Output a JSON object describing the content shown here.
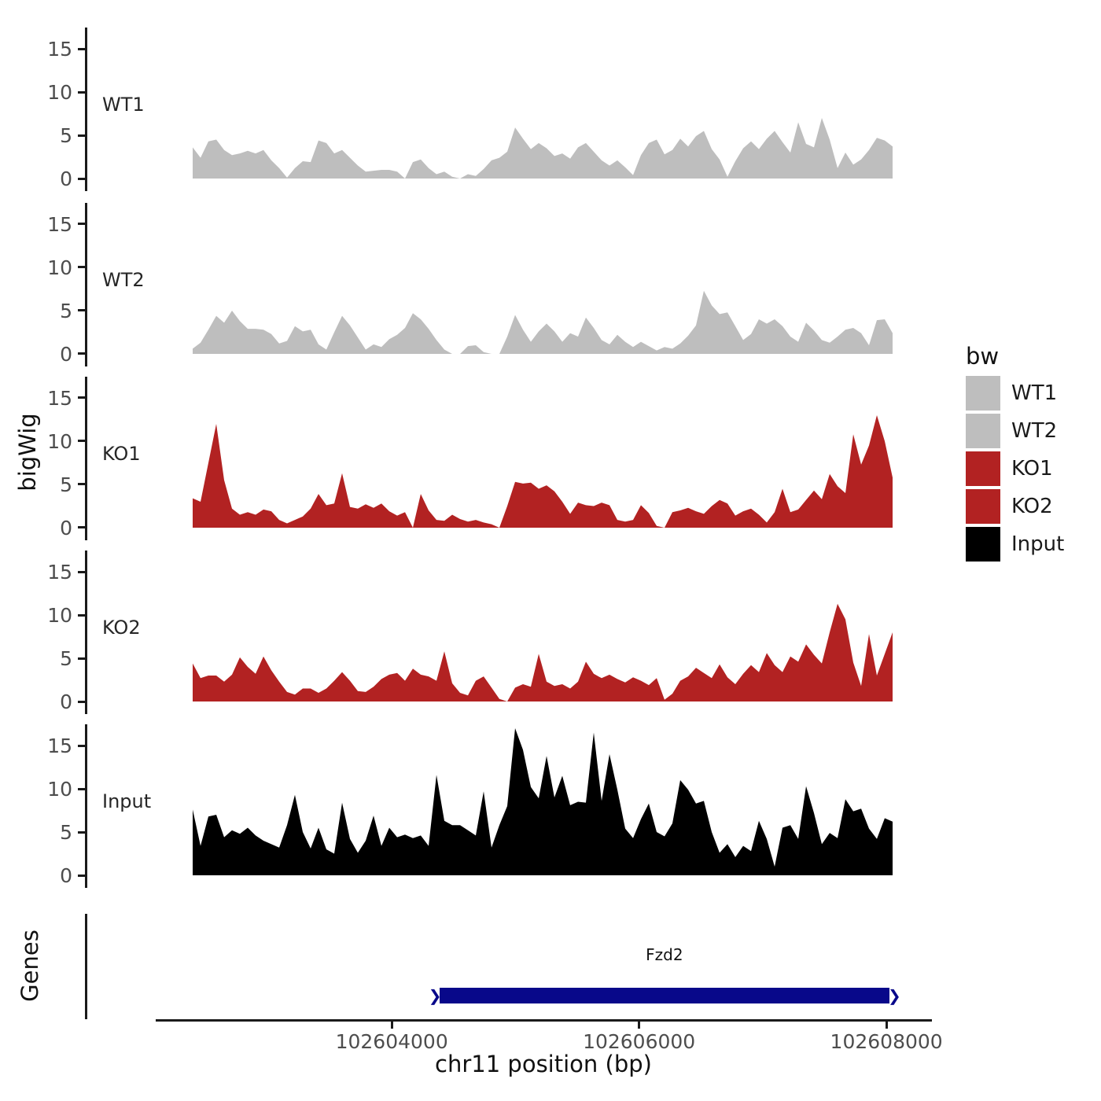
{
  "figure": {
    "y_axis_title": "bigWig",
    "genes_axis_title": "Genes",
    "x_axis_title": "chr11 position (bp)"
  },
  "legend": {
    "title": "bw",
    "items": [
      {
        "label": "WT1",
        "color": "#BEBEBE"
      },
      {
        "label": "WT2",
        "color": "#BEBEBE"
      },
      {
        "label": "KO1",
        "color": "#B22222"
      },
      {
        "label": "KO2",
        "color": "#B22222"
      },
      {
        "label": "Input",
        "color": "#000000"
      }
    ]
  },
  "chart_data": {
    "type": "area",
    "xlabel": "chr11 position (bp)",
    "ylabel": "bigWig",
    "xlim": [
      102602390,
      102608050
    ],
    "x_ticks_bp": [
      102604000,
      102606000,
      102608000
    ],
    "ylim": [
      0,
      18
    ],
    "y_ticks": [
      0,
      5,
      10,
      15
    ],
    "legend_title": "bw",
    "grid": false,
    "tracks": [
      {
        "name": "WT1",
        "color": "#BEBEBE",
        "values": [
          3.6,
          2.4,
          4.3,
          4.5,
          3.3,
          2.7,
          2.9,
          3.2,
          2.9,
          3.3,
          2.1,
          1.2,
          0.1,
          1.2,
          2.0,
          1.9,
          4.4,
          4.1,
          2.9,
          3.3,
          2.4,
          1.5,
          0.8,
          0.9,
          1.0,
          1.0,
          0.8,
          0,
          1.9,
          2.2,
          1.2,
          0.5,
          0.8,
          0.2,
          0,
          0.5,
          0.3,
          1.1,
          2.1,
          2.4,
          3.1,
          5.9,
          4.6,
          3.4,
          4.1,
          3.5,
          2.6,
          2.9,
          2.3,
          3.6,
          4.1,
          3.1,
          2.1,
          1.5,
          2.1,
          1.3,
          0.4,
          2.7,
          4.1,
          4.5,
          2.8,
          3.3,
          4.6,
          3.7,
          4.9,
          5.5,
          3.4,
          2.2,
          0.2,
          2.0,
          3.5,
          4.3,
          3.4,
          4.6,
          5.5,
          4.2,
          3.0,
          6.5,
          4.0,
          3.6,
          7.0,
          4.5,
          1.2,
          3.0,
          1.6,
          2.2,
          3.3,
          4.7,
          4.4,
          3.7
        ]
      },
      {
        "name": "WT2",
        "color": "#BEBEBE",
        "values": [
          0.6,
          1.3,
          2.8,
          4.4,
          3.6,
          5.0,
          3.8,
          2.9,
          2.9,
          2.8,
          2.3,
          1.2,
          1.5,
          3.2,
          2.6,
          2.8,
          1.1,
          0.5,
          2.5,
          4.4,
          3.3,
          1.9,
          0.5,
          1.1,
          0.8,
          1.7,
          2.2,
          3.0,
          4.7,
          4.0,
          2.9,
          1.6,
          0.5,
          0,
          0,
          0.9,
          1.0,
          0.2,
          0,
          0,
          2.0,
          4.5,
          2.8,
          1.4,
          2.6,
          3.5,
          2.6,
          1.4,
          2.4,
          2.0,
          4.2,
          3.0,
          1.6,
          1.1,
          2.2,
          1.4,
          0.8,
          1.4,
          0.9,
          0.4,
          0.8,
          0.6,
          1.2,
          2.1,
          3.3,
          7.3,
          5.6,
          4.6,
          4.8,
          3.2,
          1.6,
          2.3,
          4.0,
          3.5,
          4.0,
          3.2,
          2.0,
          1.4,
          3.6,
          2.7,
          1.6,
          1.3,
          2.0,
          2.8,
          3.0,
          2.4,
          1.0,
          3.9,
          4.0,
          2.4
        ]
      },
      {
        "name": "KO1",
        "color": "#B22222",
        "values": [
          3.4,
          3.0,
          7.5,
          12.0,
          5.5,
          2.2,
          1.5,
          1.8,
          1.5,
          2.1,
          1.9,
          0.9,
          0.5,
          0.9,
          1.3,
          2.2,
          3.9,
          2.6,
          2.8,
          6.3,
          2.4,
          2.2,
          2.7,
          2.3,
          2.8,
          1.9,
          1.4,
          1.8,
          0,
          3.9,
          2.0,
          0.9,
          0.8,
          1.5,
          1.0,
          0.7,
          0.9,
          0.6,
          0.4,
          0,
          2.5,
          5.3,
          5.1,
          5.2,
          4.5,
          4.9,
          4.2,
          3.0,
          1.6,
          2.9,
          2.6,
          2.5,
          2.9,
          2.6,
          0.9,
          0.7,
          0.9,
          2.6,
          1.7,
          0.2,
          0,
          1.8,
          2.0,
          2.3,
          1.9,
          1.6,
          2.5,
          3.2,
          2.8,
          1.4,
          1.9,
          2.2,
          1.5,
          0.6,
          1.8,
          4.5,
          1.8,
          2.1,
          3.2,
          4.3,
          3.3,
          6.2,
          4.8,
          4.0,
          10.8,
          7.3,
          9.5,
          13.0,
          10.0,
          5.8
        ]
      },
      {
        "name": "KO2",
        "color": "#B22222",
        "values": [
          4.4,
          2.7,
          3.0,
          3.0,
          2.3,
          3.1,
          5.1,
          4.0,
          3.2,
          5.2,
          3.6,
          2.3,
          1.1,
          0.8,
          1.5,
          1.5,
          1.0,
          1.5,
          2.4,
          3.4,
          2.4,
          1.2,
          1.1,
          1.7,
          2.6,
          3.1,
          3.3,
          2.4,
          3.8,
          3.1,
          2.9,
          2.4,
          5.8,
          2.1,
          1.0,
          0.7,
          2.4,
          2.9,
          1.6,
          0.3,
          0,
          1.6,
          2.0,
          1.7,
          5.5,
          2.3,
          1.8,
          2.0,
          1.5,
          2.3,
          4.6,
          3.2,
          2.7,
          3.1,
          2.6,
          2.2,
          2.8,
          2.4,
          1.9,
          2.7,
          0.2,
          0.9,
          2.4,
          2.9,
          3.9,
          3.3,
          2.7,
          4.3,
          2.8,
          2.0,
          3.2,
          4.2,
          3.4,
          5.6,
          4.2,
          3.4,
          5.2,
          4.6,
          6.6,
          5.4,
          4.4,
          8.0,
          11.3,
          9.5,
          4.5,
          1.8,
          7.8,
          3.0,
          5.5,
          8.0
        ]
      },
      {
        "name": "Input",
        "color": "#000000",
        "values": [
          7.6,
          3.4,
          6.8,
          7.0,
          4.4,
          5.2,
          4.8,
          5.5,
          4.6,
          4.0,
          3.6,
          3.2,
          5.8,
          9.3,
          5.0,
          3.1,
          5.5,
          3.0,
          2.5,
          8.4,
          4.2,
          2.6,
          4.0,
          6.9,
          3.4,
          5.5,
          4.4,
          4.7,
          4.3,
          4.6,
          3.4,
          11.6,
          6.3,
          5.8,
          5.8,
          5.2,
          4.6,
          9.7,
          3.2,
          5.8,
          8.0,
          17.0,
          14.5,
          10.2,
          8.9,
          13.8,
          9.0,
          11.5,
          8.1,
          8.5,
          8.4,
          16.5,
          8.6,
          14.0,
          9.9,
          5.4,
          4.3,
          6.5,
          8.3,
          5.0,
          4.5,
          6.0,
          11.0,
          9.9,
          8.3,
          8.6,
          5.0,
          2.6,
          3.6,
          2.1,
          3.4,
          2.8,
          6.3,
          4.2,
          1.0,
          5.5,
          5.8,
          4.2,
          10.3,
          7.2,
          3.6,
          4.9,
          4.3,
          8.8,
          7.4,
          7.7,
          5.4,
          4.2,
          6.6,
          6.2
        ]
      }
    ],
    "gene": {
      "name": "Fzd2",
      "start_bp": 102604360,
      "end_bp": 102608050,
      "strand": "+",
      "color": "#08088A"
    }
  }
}
